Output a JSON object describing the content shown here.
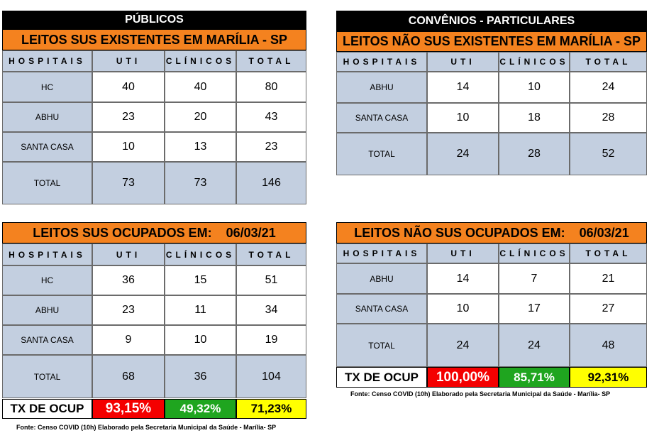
{
  "tables": [
    {
      "banner": "PÚBLICOS",
      "title": "LEITOS SUS EXISTENTES EM MARÍLIA - SP",
      "columns": [
        "HOSPITAIS",
        "UTI",
        "CLÍNICOS",
        "TOTAL"
      ],
      "rows": [
        [
          "HC",
          40,
          40,
          80
        ],
        [
          "ABHU",
          23,
          20,
          43
        ],
        [
          "SANTA CASA",
          10,
          13,
          23
        ]
      ],
      "total": [
        "TOTAL",
        73,
        73,
        146
      ]
    },
    {
      "banner": "CONVÊNIOS - PARTICULARES",
      "title": "LEITOS NÃO SUS EXISTENTES EM MARÍLIA - SP",
      "columns": [
        "HOSPITAIS",
        "UTI",
        "CLÍNICOS",
        "TOTAL"
      ],
      "rows": [
        [
          "ABHU",
          14,
          10,
          24
        ],
        [
          "SANTA CASA",
          10,
          18,
          28
        ]
      ],
      "total": [
        "TOTAL",
        24,
        28,
        52
      ]
    },
    {
      "title": "LEITOS SUS OCUPADOS EM:",
      "date": "06/03/21",
      "columns": [
        "HOSPITAIS",
        "UTI",
        "CLÍNICOS",
        "TOTAL"
      ],
      "rows": [
        [
          "HC",
          36,
          15,
          51
        ],
        [
          "ABHU",
          23,
          11,
          34
        ],
        [
          "SANTA CASA",
          9,
          10,
          19
        ]
      ],
      "total": [
        "TOTAL",
        68,
        36,
        104
      ],
      "occupancy": {
        "label": "TX DE OCUP",
        "values": [
          "93,15%",
          "49,32%",
          "71,23%"
        ]
      },
      "source": "Fonte: Censo COVID (10h) Elaborado pela Secretaria Municipal da Saúde - Marília- SP"
    },
    {
      "title": "LEITOS NÃO SUS OCUPADOS EM:",
      "date": "06/03/21",
      "columns": [
        "HOSPITAIS",
        "UTI",
        "CLÍNICOS",
        "TOTAL"
      ],
      "rows": [
        [
          "ABHU",
          14,
          7,
          21
        ],
        [
          "SANTA CASA",
          10,
          17,
          27
        ]
      ],
      "total": [
        "TOTAL",
        24,
        24,
        48
      ],
      "occupancy": {
        "label": "TX DE OCUP",
        "values": [
          "100,00%",
          "85,71%",
          "92,31%"
        ]
      },
      "source": "Fonte: Censo COVID (10h) Elaborado pela Secretaria Municipal da Saúde - Marília- SP"
    }
  ]
}
